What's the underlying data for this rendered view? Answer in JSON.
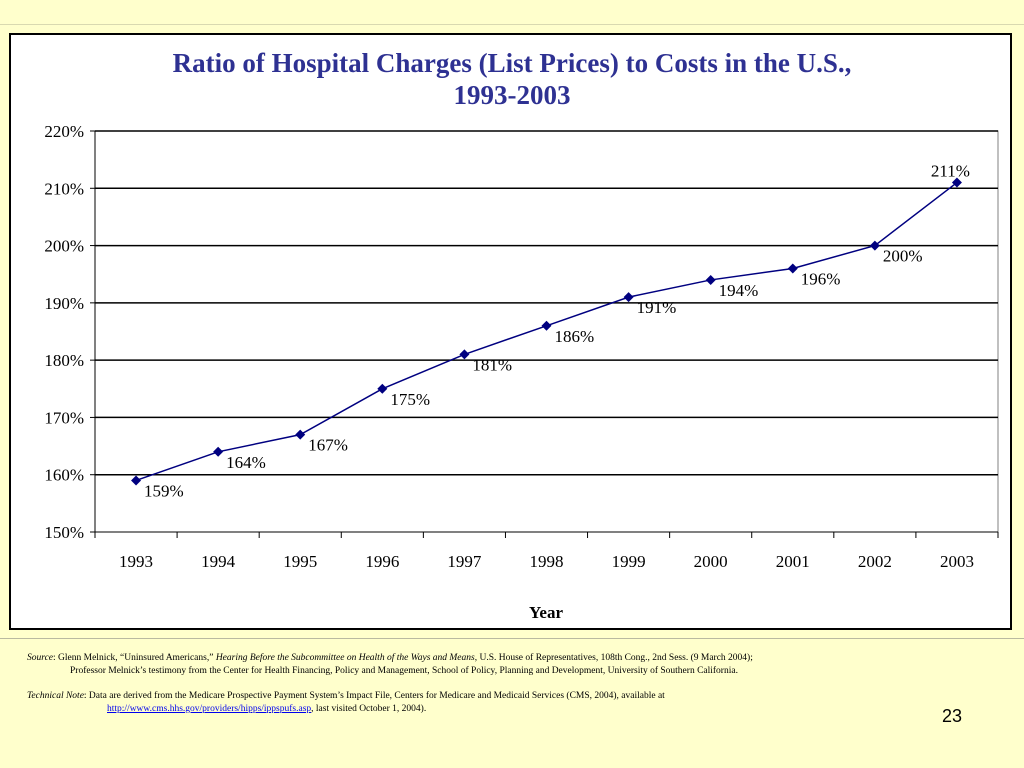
{
  "chart_data": {
    "type": "line",
    "title": [
      "Ratio of Hospital Charges (List Prices) to Costs in the U.S.,",
      "1993-2003"
    ],
    "xlabel": "Year",
    "ylabel": "",
    "categories": [
      "1993",
      "1994",
      "1995",
      "1996",
      "1997",
      "1998",
      "1999",
      "2000",
      "2001",
      "2002",
      "2003"
    ],
    "values": [
      159,
      164,
      167,
      175,
      181,
      186,
      191,
      194,
      196,
      200,
      211
    ],
    "data_labels": [
      "159%",
      "164%",
      "167%",
      "175%",
      "181%",
      "186%",
      "191%",
      "194%",
      "196%",
      "200%",
      "211%"
    ],
    "ylim": [
      150,
      220
    ],
    "yticks": [
      150,
      160,
      170,
      180,
      190,
      200,
      210,
      220
    ],
    "ytick_labels": [
      "150%",
      "160%",
      "170%",
      "180%",
      "190%",
      "200%",
      "210%",
      "220%"
    ],
    "grid": true,
    "legend": "none",
    "line_color": "#000080",
    "marker": "diamond"
  },
  "footnotes": {
    "source_label": "Source",
    "source_text_1": ":  Glenn Melnick, “Uninsured Americans,” ",
    "source_italic": "Hearing Before the Subcommittee on Health of the Ways and Means",
    "source_text_2": ", U.S. House of Representatives, 108th Cong., 2nd Sess. (9 March 2004);",
    "source_line_2": "Professor Melnick’s testimony from the Center for Health Financing, Policy and Management, School of Policy, Planning and Development, University of Southern California.",
    "technote_label": "Technical Note",
    "technote_text": ":  Data are derived from the Medicare Prospective Payment System’s Impact File, Centers for Medicare and Medicaid Services (CMS, 2004), available at",
    "technote_link": "http://www.cms.hhs.gov/providers/hipps/ippspufs.asp",
    "technote_tail": ", last visited October 1, 2004)."
  },
  "page_number": "23",
  "colors": {
    "background": "#ffffcc",
    "title": "#2e3192",
    "line": "#000080",
    "marker": "#000080"
  }
}
